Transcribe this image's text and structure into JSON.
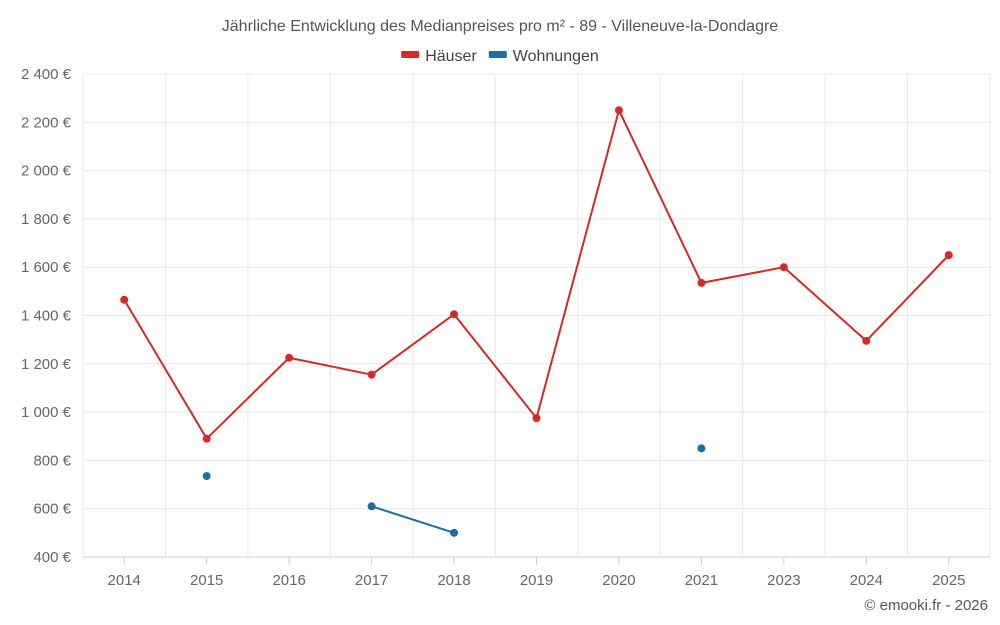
{
  "chart_data": {
    "type": "line",
    "title": "Jährliche Entwicklung des Medianpreises pro m² - 89 - Villeneuve-la-Dondagre",
    "categories": [
      "2014",
      "2015",
      "2016",
      "2017",
      "2018",
      "2019",
      "2020",
      "2021",
      "2023",
      "2024",
      "2025"
    ],
    "series": [
      {
        "name": "Häuser",
        "color": "#d12a2a",
        "values": [
          1465,
          890,
          1225,
          1155,
          1405,
          975,
          2250,
          1535,
          1600,
          1295,
          1650
        ]
      },
      {
        "name": "Wohnungen",
        "color": "#1a6fa3",
        "values": [
          null,
          735,
          null,
          610,
          500,
          null,
          null,
          850,
          null,
          null,
          null
        ]
      }
    ],
    "ylim": [
      400,
      2400
    ],
    "yticks": [
      400,
      600,
      800,
      1000,
      1200,
      1400,
      1600,
      1800,
      2000,
      2200,
      2400
    ],
    "ytick_labels": [
      "400 €",
      "600 €",
      "800 €",
      "1 000 €",
      "1 200 €",
      "1 400 €",
      "1 600 €",
      "1 800 €",
      "2 000 €",
      "2 200 €",
      "2 400 €"
    ],
    "xlabel": "",
    "ylabel": "",
    "legend_position": "top-center",
    "grid": true
  },
  "credit": "© emooki.fr - 2026"
}
